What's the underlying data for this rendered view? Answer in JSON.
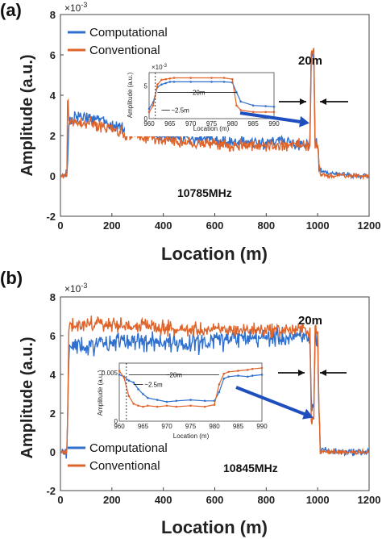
{
  "chart_data": [
    {
      "panel_label": "(a)",
      "type": "line",
      "xlabel": "Location (m)",
      "ylabel": "Amplitude (a.u.)",
      "y_exponent": "×10",
      "y_exponent_power": "-3",
      "xlim": [
        0,
        1200
      ],
      "ylim": [
        -2,
        8
      ],
      "xticks": [
        "0",
        "200",
        "400",
        "600",
        "800",
        "1000",
        "1200"
      ],
      "yticks": [
        "-2",
        "0",
        "2",
        "4",
        "6",
        "8"
      ],
      "legend": {
        "position": "top-left",
        "entries": [
          "Computational",
          "Conventional"
        ]
      },
      "annotation_width": "20m",
      "annotation_freq": "10785MHz",
      "series": [
        {
          "name": "Computational",
          "color": "#2f6fce",
          "x": [
            0,
            25,
            28,
            33,
            40,
            60,
            100,
            150,
            200,
            250,
            300,
            350,
            400,
            450,
            500,
            550,
            600,
            650,
            700,
            750,
            800,
            850,
            900,
            950,
            970,
            975,
            980,
            985,
            990,
            1000,
            1005,
            1010,
            1050,
            1100,
            1150,
            1200
          ],
          "values": [
            0,
            0,
            0.6,
            2.7,
            2.8,
            2.9,
            2.9,
            2.8,
            2.5,
            2.4,
            2.3,
            2.2,
            2.0,
            1.9,
            1.8,
            1.8,
            1.8,
            1.7,
            1.7,
            1.7,
            1.7,
            1.7,
            1.6,
            1.6,
            1.6,
            5.8,
            5.8,
            5.8,
            1.6,
            1.6,
            0.6,
            0.2,
            0.1,
            0.1,
            0.0,
            0.0
          ],
          "noise": 0.28
        },
        {
          "name": "Conventional",
          "color": "#e0642a",
          "x": [
            0,
            25,
            28,
            33,
            40,
            60,
            100,
            150,
            200,
            250,
            300,
            350,
            400,
            450,
            500,
            550,
            600,
            650,
            700,
            750,
            800,
            850,
            900,
            950,
            970,
            975,
            980,
            985,
            990,
            1000,
            1005,
            1010,
            1050,
            1100,
            1150,
            1200
          ],
          "values": [
            0,
            0,
            4.5,
            2.6,
            2.7,
            2.6,
            2.6,
            2.5,
            2.3,
            2.1,
            2.0,
            1.9,
            1.8,
            1.7,
            1.6,
            1.6,
            1.6,
            1.5,
            1.5,
            1.5,
            1.5,
            1.5,
            1.5,
            1.5,
            1.5,
            6.2,
            6.3,
            6.2,
            1.5,
            1.5,
            0.6,
            0.1,
            0.0,
            0.0,
            0.0,
            0.0
          ],
          "noise": 0.26
        }
      ],
      "inset": {
        "xlabel": "Location (m)",
        "ylabel": "Amplitude (a.u.)",
        "y_exponent": "×10",
        "y_exponent_power": "-3",
        "xlim": [
          960,
          990
        ],
        "ylim": [
          0,
          7
        ],
        "xticks": [
          "960",
          "965",
          "970",
          "975",
          "980",
          "985",
          "990"
        ],
        "yticks": [
          "0",
          "5"
        ],
        "ann_span": "~20m",
        "ann_small": "~2.5m",
        "series": [
          {
            "name": "Computational",
            "color": "#2f6fce",
            "x": [
              960,
              961,
              962,
              963,
              964,
              965,
              966,
              970,
              975,
              978,
              980,
              981,
              982,
              985,
              988,
              990
            ],
            "values": [
              1.5,
              2.5,
              4.8,
              5.2,
              5.4,
              5.6,
              5.6,
              5.6,
              5.6,
              5.6,
              5.5,
              4.0,
              2.6,
              2.0,
              1.9,
              1.8
            ]
          },
          {
            "name": "Conventional",
            "color": "#e0642a",
            "x": [
              960,
              961,
              962,
              963,
              964,
              965,
              966,
              970,
              975,
              978,
              980,
              981,
              982,
              985,
              988,
              990
            ],
            "values": [
              1.0,
              2.0,
              5.2,
              5.9,
              6.0,
              6.1,
              6.2,
              6.2,
              6.2,
              6.2,
              6.0,
              2.0,
              1.3,
              1.0,
              1.0,
              1.0
            ]
          }
        ]
      }
    },
    {
      "panel_label": "(b)",
      "type": "line",
      "xlabel": "Location (m)",
      "ylabel": "Amplitude (a.u.)",
      "y_exponent": "×10",
      "y_exponent_power": "-3",
      "xlim": [
        0,
        1200
      ],
      "ylim": [
        -2,
        8
      ],
      "xticks": [
        "0",
        "200",
        "400",
        "600",
        "800",
        "1000",
        "1200"
      ],
      "yticks": [
        "-2",
        "0",
        "2",
        "4",
        "6",
        "8"
      ],
      "legend": {
        "position": "bottom-left",
        "entries": [
          "Computational",
          "Conventional"
        ]
      },
      "annotation_width": "20m",
      "annotation_freq": "10845MHz",
      "series": [
        {
          "name": "Computational",
          "color": "#2f6fce",
          "x": [
            0,
            25,
            28,
            33,
            40,
            60,
            100,
            150,
            200,
            250,
            300,
            350,
            400,
            450,
            500,
            550,
            600,
            650,
            700,
            750,
            800,
            850,
            900,
            950,
            970,
            975,
            980,
            985,
            990,
            1000,
            1005,
            1010,
            1050,
            1100,
            1150,
            1200
          ],
          "values": [
            0,
            0,
            2.0,
            5.3,
            5.5,
            5.5,
            5.4,
            5.6,
            5.6,
            5.7,
            5.8,
            5.7,
            5.6,
            5.6,
            5.6,
            5.6,
            5.7,
            5.8,
            5.9,
            5.9,
            5.9,
            5.9,
            5.9,
            5.9,
            5.9,
            2.4,
            2.2,
            2.4,
            5.9,
            5.9,
            2.0,
            0.2,
            0.0,
            0.0,
            0.0,
            0.0
          ],
          "noise": 0.42
        },
        {
          "name": "Conventional",
          "color": "#e0642a",
          "x": [
            0,
            25,
            28,
            33,
            40,
            60,
            100,
            150,
            200,
            250,
            300,
            350,
            400,
            450,
            500,
            550,
            600,
            650,
            700,
            750,
            800,
            850,
            900,
            950,
            970,
            975,
            980,
            985,
            990,
            1000,
            1005,
            1010,
            1050,
            1100,
            1150,
            1200
          ],
          "values": [
            0,
            0,
            2.0,
            6.6,
            6.6,
            6.6,
            6.6,
            6.6,
            6.6,
            6.5,
            6.5,
            6.5,
            6.4,
            6.3,
            6.3,
            6.3,
            6.3,
            6.3,
            6.3,
            6.3,
            6.3,
            6.3,
            6.3,
            6.3,
            6.3,
            1.8,
            1.6,
            1.8,
            6.4,
            6.4,
            2.0,
            0.0,
            0.0,
            0.0,
            0.0,
            0.0
          ],
          "noise": 0.3
        }
      ],
      "inset": {
        "xlabel": "Location (m)",
        "ylabel": "Amplitude (a.u.)",
        "xlim": [
          960,
          990
        ],
        "ylim": [
          0,
          0.006
        ],
        "xticks": [
          "960",
          "965",
          "970",
          "975",
          "980",
          "985",
          "990"
        ],
        "yticks": [
          "0",
          "0.005"
        ],
        "ann_span": "~20m",
        "ann_small": "~2.5m",
        "series": [
          {
            "name": "Computational",
            "color": "#2f6fce",
            "x": [
              960,
              961,
              962,
              963,
              964,
              965,
              966,
              968,
              970,
              972,
              975,
              978,
              980,
              981,
              982,
              983,
              985,
              987,
              988,
              990
            ],
            "values": [
              0.0048,
              0.0046,
              0.0042,
              0.004,
              0.0033,
              0.0028,
              0.0024,
              0.0022,
              0.002,
              0.0021,
              0.0022,
              0.0021,
              0.0021,
              0.003,
              0.0044,
              0.0046,
              0.0047,
              0.0046,
              0.0047,
              0.0048
            ]
          },
          {
            "name": "Conventional",
            "color": "#e0642a",
            "x": [
              960,
              961,
              962,
              963,
              964,
              965,
              966,
              968,
              970,
              972,
              975,
              978,
              980,
              981,
              982,
              983,
              985,
              987,
              988,
              990
            ],
            "values": [
              0.0052,
              0.0045,
              0.0026,
              0.0018,
              0.0016,
              0.0015,
              0.0016,
              0.0015,
              0.0016,
              0.0015,
              0.0016,
              0.0015,
              0.0017,
              0.0038,
              0.0049,
              0.0051,
              0.0052,
              0.0053,
              0.0054,
              0.0055
            ]
          }
        ]
      }
    }
  ]
}
